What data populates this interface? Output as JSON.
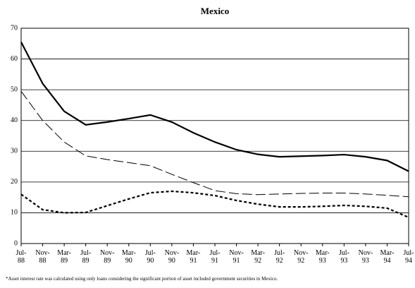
{
  "chart_data": {
    "type": "line",
    "title": "Mexico",
    "categories": [
      "Jul-88",
      "Nov-88",
      "Mar-89",
      "Jul-89",
      "Nov-89",
      "Mar-90",
      "Jul-90",
      "Nov-90",
      "Mar-91",
      "Jul-91",
      "Nov-91",
      "Mar-92",
      "Jul-92",
      "Nov-92",
      "Mar-93",
      "Jul-93",
      "Nov-93",
      "Mar-94",
      "Jul-94"
    ],
    "series": [
      {
        "color": "#000000",
        "dash": "solid",
        "values": [
          65.5,
          52,
          43,
          38.6,
          39.5,
          40.6,
          41.8,
          39.5,
          36,
          33,
          30.5,
          29,
          28.2,
          28.4,
          28.6,
          28.9,
          28.2,
          27,
          23.5
        ]
      },
      {
        "color": "#000000",
        "dash": "long-dash",
        "values": [
          49.5,
          40,
          33,
          28.5,
          27.3,
          26.3,
          25.3,
          22.5,
          19.8,
          17.2,
          16.2,
          15.9,
          16.1,
          16.3,
          16.4,
          16.4,
          16.1,
          15.7,
          15.2
        ]
      },
      {
        "color": "#000000",
        "dash": "dotted",
        "values": [
          16,
          11,
          10,
          10.1,
          12.3,
          14.5,
          16.5,
          17,
          16.5,
          15.6,
          14,
          12.8,
          11.9,
          11.9,
          12.1,
          12.4,
          12.1,
          11.5,
          8.5
        ]
      }
    ],
    "ylim": [
      0,
      70
    ],
    "yticks": [
      0,
      10,
      20,
      30,
      40,
      50,
      60,
      70
    ],
    "grid": true,
    "footnote": "*Asset interest rate was calculated using only loans considering the significant portion of asset included government securities in Mexico."
  }
}
